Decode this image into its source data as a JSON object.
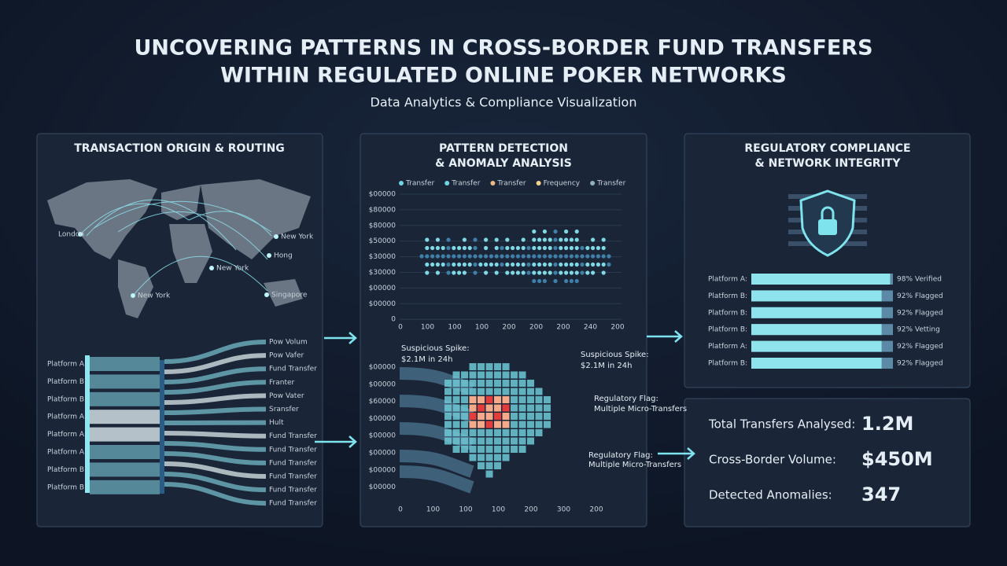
{
  "header": {
    "title_line1": "UNCOVERING PATTERNS IN CROSS-BORDER FUND TRANSFERS",
    "title_line2": "WITHIN REGULATED ONLINE POKER NETWORKS",
    "subtitle": "Data Analytics & Compliance Visualization"
  },
  "routing": {
    "title": "TRANSACTION ORIGIN & ROUTING",
    "map_labels": [
      "London",
      "New York",
      "Hong",
      "New York",
      "New York",
      "Singapore"
    ],
    "sources": [
      "Platform A:",
      "Platform B:",
      "Platform B:",
      "Platform A:",
      "Platform A:",
      "Platform A:",
      "Platform B:",
      "Platform B:"
    ],
    "targets": [
      "Pow Volum",
      "Pow Vafer",
      "Fund Transfer",
      "Franter",
      "Pow Vater",
      "Sransfer",
      "Hult",
      "Fund Transfer",
      "Fund Transfer",
      "Fund Transfer",
      "Fund Transfer",
      "Fund Transfer",
      "Fund Transfer"
    ]
  },
  "patterns": {
    "title_line1": "PATTERN DETECTION",
    "title_line2": "& ANOMALY ANALYSIS",
    "legend": [
      {
        "name": "Transfer",
        "color": "#6fd3e0"
      },
      {
        "name": "Transfer",
        "color": "#6fd3e0"
      },
      {
        "name": "Transfer",
        "color": "#f0b98a"
      },
      {
        "name": "Frequency",
        "color": "#f6d28e"
      },
      {
        "name": "Transfer",
        "color": "#8fb0b8"
      }
    ],
    "scatter_yticks": [
      "$00000",
      "$80000",
      "$80000",
      "$50000",
      "$30000",
      "$30000",
      "$00000",
      "$00000",
      "0"
    ],
    "scatter_xticks": [
      "0",
      "100",
      "100",
      "100",
      "200",
      "200",
      "200",
      "240",
      "200"
    ],
    "heat_yticks": [
      "$00000",
      "$00000",
      "$60000",
      "$00000",
      "$00000",
      "$00000",
      "$00000",
      "$00000"
    ],
    "heat_xticks": [
      "0",
      "100",
      "100",
      "100",
      "200",
      "300",
      "200"
    ],
    "annotations": [
      "Suspicious Spike:\n$2.1M in 24h",
      "Suspicious Spike:\n$2.1M in 24h",
      "Regulatory Flag:\nMultiple Micro-Transfers",
      "Regulatory Flag:\nMultiple Micro-Transfers"
    ]
  },
  "compliance": {
    "title_line1": "REGULATORY COMPLIANCE",
    "title_line2": "& NETWORK INTEGRITY",
    "bars": [
      {
        "label": "Platform A:",
        "value": 98,
        "status": "98% Verified"
      },
      {
        "label": "Platform B:",
        "value": 92,
        "status": "92% Flagged"
      },
      {
        "label": "Platform B:",
        "value": 92,
        "status": "92% Flagged"
      },
      {
        "label": "Platform B:",
        "value": 92,
        "status": "92% Vetting"
      },
      {
        "label": "Platform A:",
        "value": 92,
        "status": "92% Flagged"
      },
      {
        "label": "Platform B:",
        "value": 92,
        "status": "92% Flagged"
      }
    ]
  },
  "stats": [
    {
      "label": "Total Transfers Analysed:",
      "value": "1.2M"
    },
    {
      "label": "Cross-Border Volume:",
      "value": "$450M"
    },
    {
      "label": "Detected Anomalies:",
      "value": "347"
    }
  ]
}
